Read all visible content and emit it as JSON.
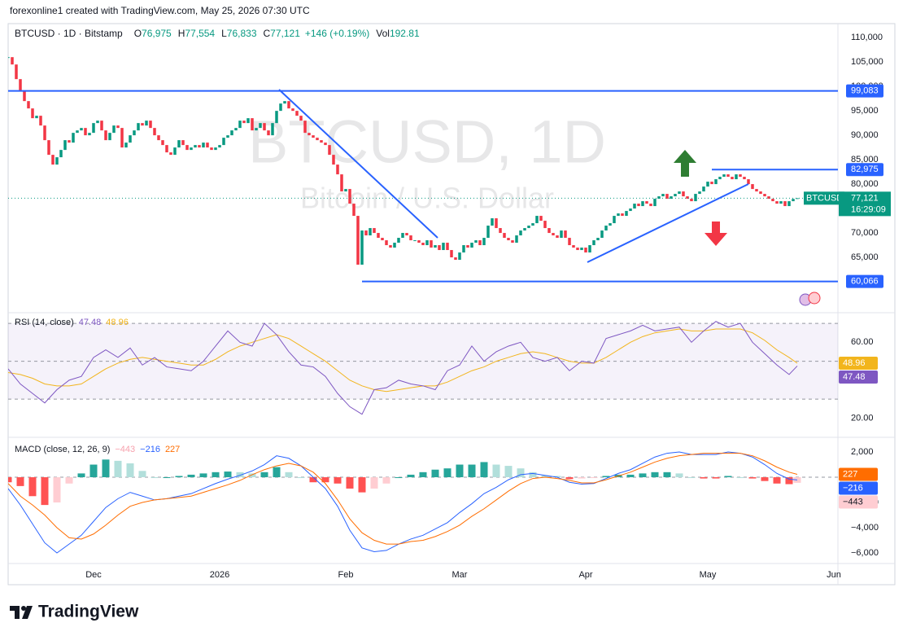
{
  "header": {
    "attribution": "forexonline1 created with TradingView.com, May 25, 2026 07:30 UTC"
  },
  "footer": {
    "brand": "TradingView"
  },
  "chart_data": [
    {
      "type": "candlestick",
      "symbol": "BTCUSD · 1D · Bitstamp",
      "ohlc": [
        {
          "key": "O",
          "value": 76975,
          "label": "76,975"
        },
        {
          "key": "H",
          "value": 77554,
          "label": "77,554"
        },
        {
          "key": "L",
          "value": 76833,
          "label": "76,833"
        },
        {
          "key": "C",
          "value": 77121,
          "label": "77,121"
        }
      ],
      "change": "+146 (+0.19%)",
      "volume_key": "Vol",
      "volume": 192.81,
      "watermark": [
        "BTCUSD, 1D",
        "Bitcoin / U.S. Dollar"
      ],
      "colors": {
        "up": "#089981",
        "down": "#f23645",
        "level": "#2962ff"
      },
      "closes": [
        106000,
        104500,
        101500,
        99000,
        97000,
        95500,
        93500,
        94000,
        92000,
        89000,
        86000,
        84000,
        85500,
        87000,
        89000,
        88500,
        90500,
        91000,
        91500,
        90000,
        90500,
        92500,
        93000,
        91000,
        89000,
        90500,
        92000,
        91500,
        87500,
        88500,
        90000,
        91000,
        92500,
        92000,
        93000,
        91500,
        90000,
        89000,
        88000,
        86500,
        86000,
        87500,
        89000,
        88000,
        87000,
        87500,
        88000,
        87500,
        88500,
        87500,
        87000,
        87500,
        88000,
        89500,
        90000,
        91000,
        91500,
        93000,
        92500,
        93500,
        91000,
        91500,
        92500,
        91000,
        90000,
        92500,
        95000,
        96500,
        97000,
        95500,
        95000,
        94000,
        93000,
        90500,
        90000,
        89500,
        89000,
        88500,
        88000,
        86000,
        84000,
        82000,
        78500,
        79000,
        76000,
        73500,
        63500,
        70500,
        69500,
        71000,
        70000,
        69000,
        68500,
        67500,
        67000,
        68000,
        69000,
        70000,
        69500,
        68500,
        68500,
        68000,
        67500,
        68500,
        67000,
        67500,
        66500,
        68000,
        66500,
        65000,
        64500,
        66000,
        67500,
        67000,
        68000,
        68500,
        67500,
        69000,
        71500,
        73000,
        71000,
        70000,
        69000,
        68500,
        68000,
        69500,
        70500,
        71000,
        71500,
        72000,
        73500,
        72500,
        71000,
        70000,
        69500,
        69000,
        70500,
        69000,
        67500,
        67000,
        66500,
        67000,
        66000,
        67500,
        68500,
        69000,
        70500,
        71500,
        72000,
        73500,
        74000,
        73500,
        74500,
        75000,
        76000,
        75500,
        76500,
        76000,
        75500,
        77000,
        77500,
        78000,
        77000,
        77500,
        78000,
        78500,
        77500,
        77000,
        76500,
        78000,
        78500,
        79500,
        80500,
        80000,
        81000,
        81500,
        82000,
        81500,
        81000,
        82000,
        81500,
        81000,
        80000,
        79000,
        78500,
        78000,
        77500,
        77000,
        76500,
        76000,
        76500,
        75500,
        76500,
        76975,
        77121
      ],
      "xlim": [
        0,
        204
      ],
      "xticks": [
        {
          "value": 21,
          "label": "Dec"
        },
        {
          "value": 52,
          "label": "2026"
        },
        {
          "value": 83,
          "label": "Feb"
        },
        {
          "value": 111,
          "label": "Mar"
        },
        {
          "value": 142,
          "label": "Apr"
        },
        {
          "value": 172,
          "label": "May"
        },
        {
          "value": 203,
          "label": "Jun"
        }
      ],
      "ylim": [
        54000,
        112700
      ],
      "yticks": [
        {
          "value": 65000,
          "label": "65,000"
        },
        {
          "value": 70000,
          "label": "70,000"
        },
        {
          "value": 75000,
          "label": "75,000"
        },
        {
          "value": 80000,
          "label": "80,000"
        },
        {
          "value": 85000,
          "label": "85,000"
        },
        {
          "value": 90000,
          "label": "90,000"
        },
        {
          "value": 95000,
          "label": "95,000"
        },
        {
          "value": 100000,
          "label": "100,000"
        },
        {
          "value": 105000,
          "label": "105,000"
        },
        {
          "value": 110000,
          "label": "110,000"
        }
      ],
      "grid": false,
      "levels": [
        {
          "value": 99083,
          "label": "99,083",
          "start": 0
        },
        {
          "value": 82975,
          "label": "82,975",
          "start": 173
        },
        {
          "value": 60066,
          "label": "60,066",
          "start": 87
        }
      ],
      "last": {
        "value": 77121,
        "label": "77,121",
        "countdown": "16:29:09",
        "tag": "BTCUSD"
      }
    },
    {
      "type": "line",
      "title": "RSI (14, close)",
      "x": [
        0,
        3,
        6,
        9,
        12,
        15,
        18,
        21,
        24,
        27,
        30,
        33,
        36,
        39,
        42,
        45,
        48,
        51,
        54,
        57,
        60,
        63,
        66,
        69,
        72,
        75,
        78,
        81,
        84,
        87,
        90,
        93,
        96,
        99,
        102,
        105,
        108,
        111,
        114,
        117,
        120,
        123,
        126,
        129,
        132,
        135,
        138,
        141,
        144,
        147,
        150,
        153,
        156,
        159,
        162,
        165,
        168,
        171,
        174,
        177,
        180,
        183,
        186,
        189,
        192,
        194
      ],
      "series": [
        {
          "color": "#7e57c2",
          "values": [
            46,
            38,
            33,
            28,
            35,
            40,
            42,
            52,
            56,
            52,
            57,
            48,
            52,
            47,
            46,
            45,
            50,
            58,
            66,
            60,
            58,
            70,
            64,
            55,
            48,
            47,
            42,
            33,
            26,
            22,
            35,
            36,
            40,
            38,
            37,
            35,
            45,
            48,
            58,
            50,
            55,
            58,
            60,
            52,
            50,
            52,
            45,
            50,
            49,
            62,
            64,
            66,
            69,
            66,
            67,
            68,
            60,
            66,
            71,
            68,
            70,
            60,
            54,
            48,
            43,
            47.48
          ]
        },
        {
          "color": "#f2b51d",
          "values": [
            44,
            43,
            41,
            38,
            37,
            37,
            38,
            42,
            46,
            49,
            51,
            52,
            51,
            50,
            49,
            48,
            48,
            51,
            55,
            58,
            60,
            62,
            64,
            62,
            58,
            54,
            50,
            45,
            40,
            37,
            35,
            34,
            35,
            36,
            37,
            37,
            39,
            42,
            45,
            47,
            50,
            52,
            54,
            55,
            54,
            52,
            50,
            49,
            49,
            52,
            56,
            60,
            63,
            65,
            66,
            67,
            66,
            66,
            67,
            67,
            67,
            65,
            61,
            56,
            52,
            48.96
          ]
        }
      ],
      "bands": [
        70,
        50,
        30
      ],
      "ylim": [
        10.7,
        73.9
      ],
      "yticks": [
        {
          "value": 60,
          "label": "60.00"
        },
        {
          "value": 40,
          "label": "40.00"
        },
        {
          "value": 20,
          "label": "20.00"
        }
      ]
    },
    {
      "type": "macd",
      "title": "MACD (close, 12, 26, 9)",
      "x": [
        0,
        3,
        6,
        9,
        12,
        15,
        18,
        21,
        24,
        27,
        30,
        33,
        36,
        39,
        42,
        45,
        48,
        51,
        54,
        57,
        60,
        63,
        66,
        69,
        72,
        75,
        78,
        81,
        84,
        87,
        90,
        93,
        96,
        99,
        102,
        105,
        108,
        111,
        114,
        117,
        120,
        123,
        126,
        129,
        132,
        135,
        138,
        141,
        144,
        147,
        150,
        153,
        156,
        159,
        162,
        165,
        168,
        171,
        174,
        177,
        180,
        183,
        186,
        189,
        192,
        194
      ],
      "histogram": {
        "colors": {
          "rising_above": "#26a69a",
          "falling_above": "#b2dfdb",
          "rising_below": "#ffcdd2",
          "falling_below": "#ff5252"
        },
        "label_color": "#f7a1ad",
        "values": [
          -400,
          -700,
          -1500,
          -2200,
          -2000,
          -500,
          300,
          1000,
          1400,
          1300,
          1100,
          500,
          0,
          0,
          100,
          200,
          300,
          400,
          450,
          400,
          300,
          400,
          800,
          400,
          0,
          -400,
          -400,
          -500,
          -900,
          -1200,
          -900,
          -500,
          0,
          200,
          400,
          600,
          700,
          1000,
          1000,
          1200,
          1000,
          900,
          700,
          400,
          150,
          100,
          -150,
          -100,
          -50,
          100,
          200,
          200,
          300,
          400,
          400,
          300,
          0,
          -100,
          -100,
          100,
          0,
          -100,
          -300,
          -500,
          -550,
          -443
        ],
        "last_label": "−443"
      },
      "series": [
        {
          "color": "#2962ff",
          "values": [
            -900,
            -2200,
            -3700,
            -5200,
            -6000,
            -5300,
            -4600,
            -3500,
            -2400,
            -1700,
            -1200,
            -1500,
            -1800,
            -1700,
            -1500,
            -1300,
            -900,
            -500,
            -150,
            150,
            500,
            1000,
            1700,
            1500,
            900,
            0,
            -900,
            -2300,
            -4200,
            -5600,
            -5900,
            -5800,
            -5300,
            -4900,
            -4600,
            -4100,
            -3600,
            -2800,
            -2100,
            -1300,
            -800,
            -200,
            200,
            300,
            150,
            0,
            -400,
            -550,
            -500,
            -100,
            300,
            600,
            1100,
            1600,
            1900,
            2000,
            1800,
            1800,
            1800,
            2000,
            1900,
            1600,
            1000,
            300,
            -150,
            -216
          ],
          "last_label": "−216"
        },
        {
          "color": "#ff6d00",
          "values": [
            -500,
            -1500,
            -2200,
            -3000,
            -4000,
            -4800,
            -4900,
            -4500,
            -3800,
            -3000,
            -2300,
            -2000,
            -1800,
            -1700,
            -1600,
            -1500,
            -1200,
            -900,
            -600,
            -250,
            200,
            600,
            900,
            1100,
            900,
            400,
            -500,
            -1800,
            -3300,
            -4400,
            -5000,
            -5300,
            -5300,
            -5100,
            -5000,
            -4700,
            -4300,
            -3800,
            -3100,
            -2500,
            -1800,
            -1100,
            -500,
            -100,
            0,
            -100,
            -250,
            -450,
            -450,
            -200,
            100,
            400,
            800,
            1200,
            1500,
            1700,
            1800,
            1900,
            1900,
            1900,
            1900,
            1700,
            1300,
            800,
            400,
            227
          ],
          "last_label": "227"
        }
      ],
      "ylim": [
        -6710,
        2970
      ],
      "yticks": [
        {
          "value": 2000,
          "label": "2,000"
        },
        {
          "value": -2000,
          "label": "−2,000"
        },
        {
          "value": -4000,
          "label": "−4,000"
        },
        {
          "value": -6000,
          "label": "−6,000"
        }
      ]
    }
  ]
}
